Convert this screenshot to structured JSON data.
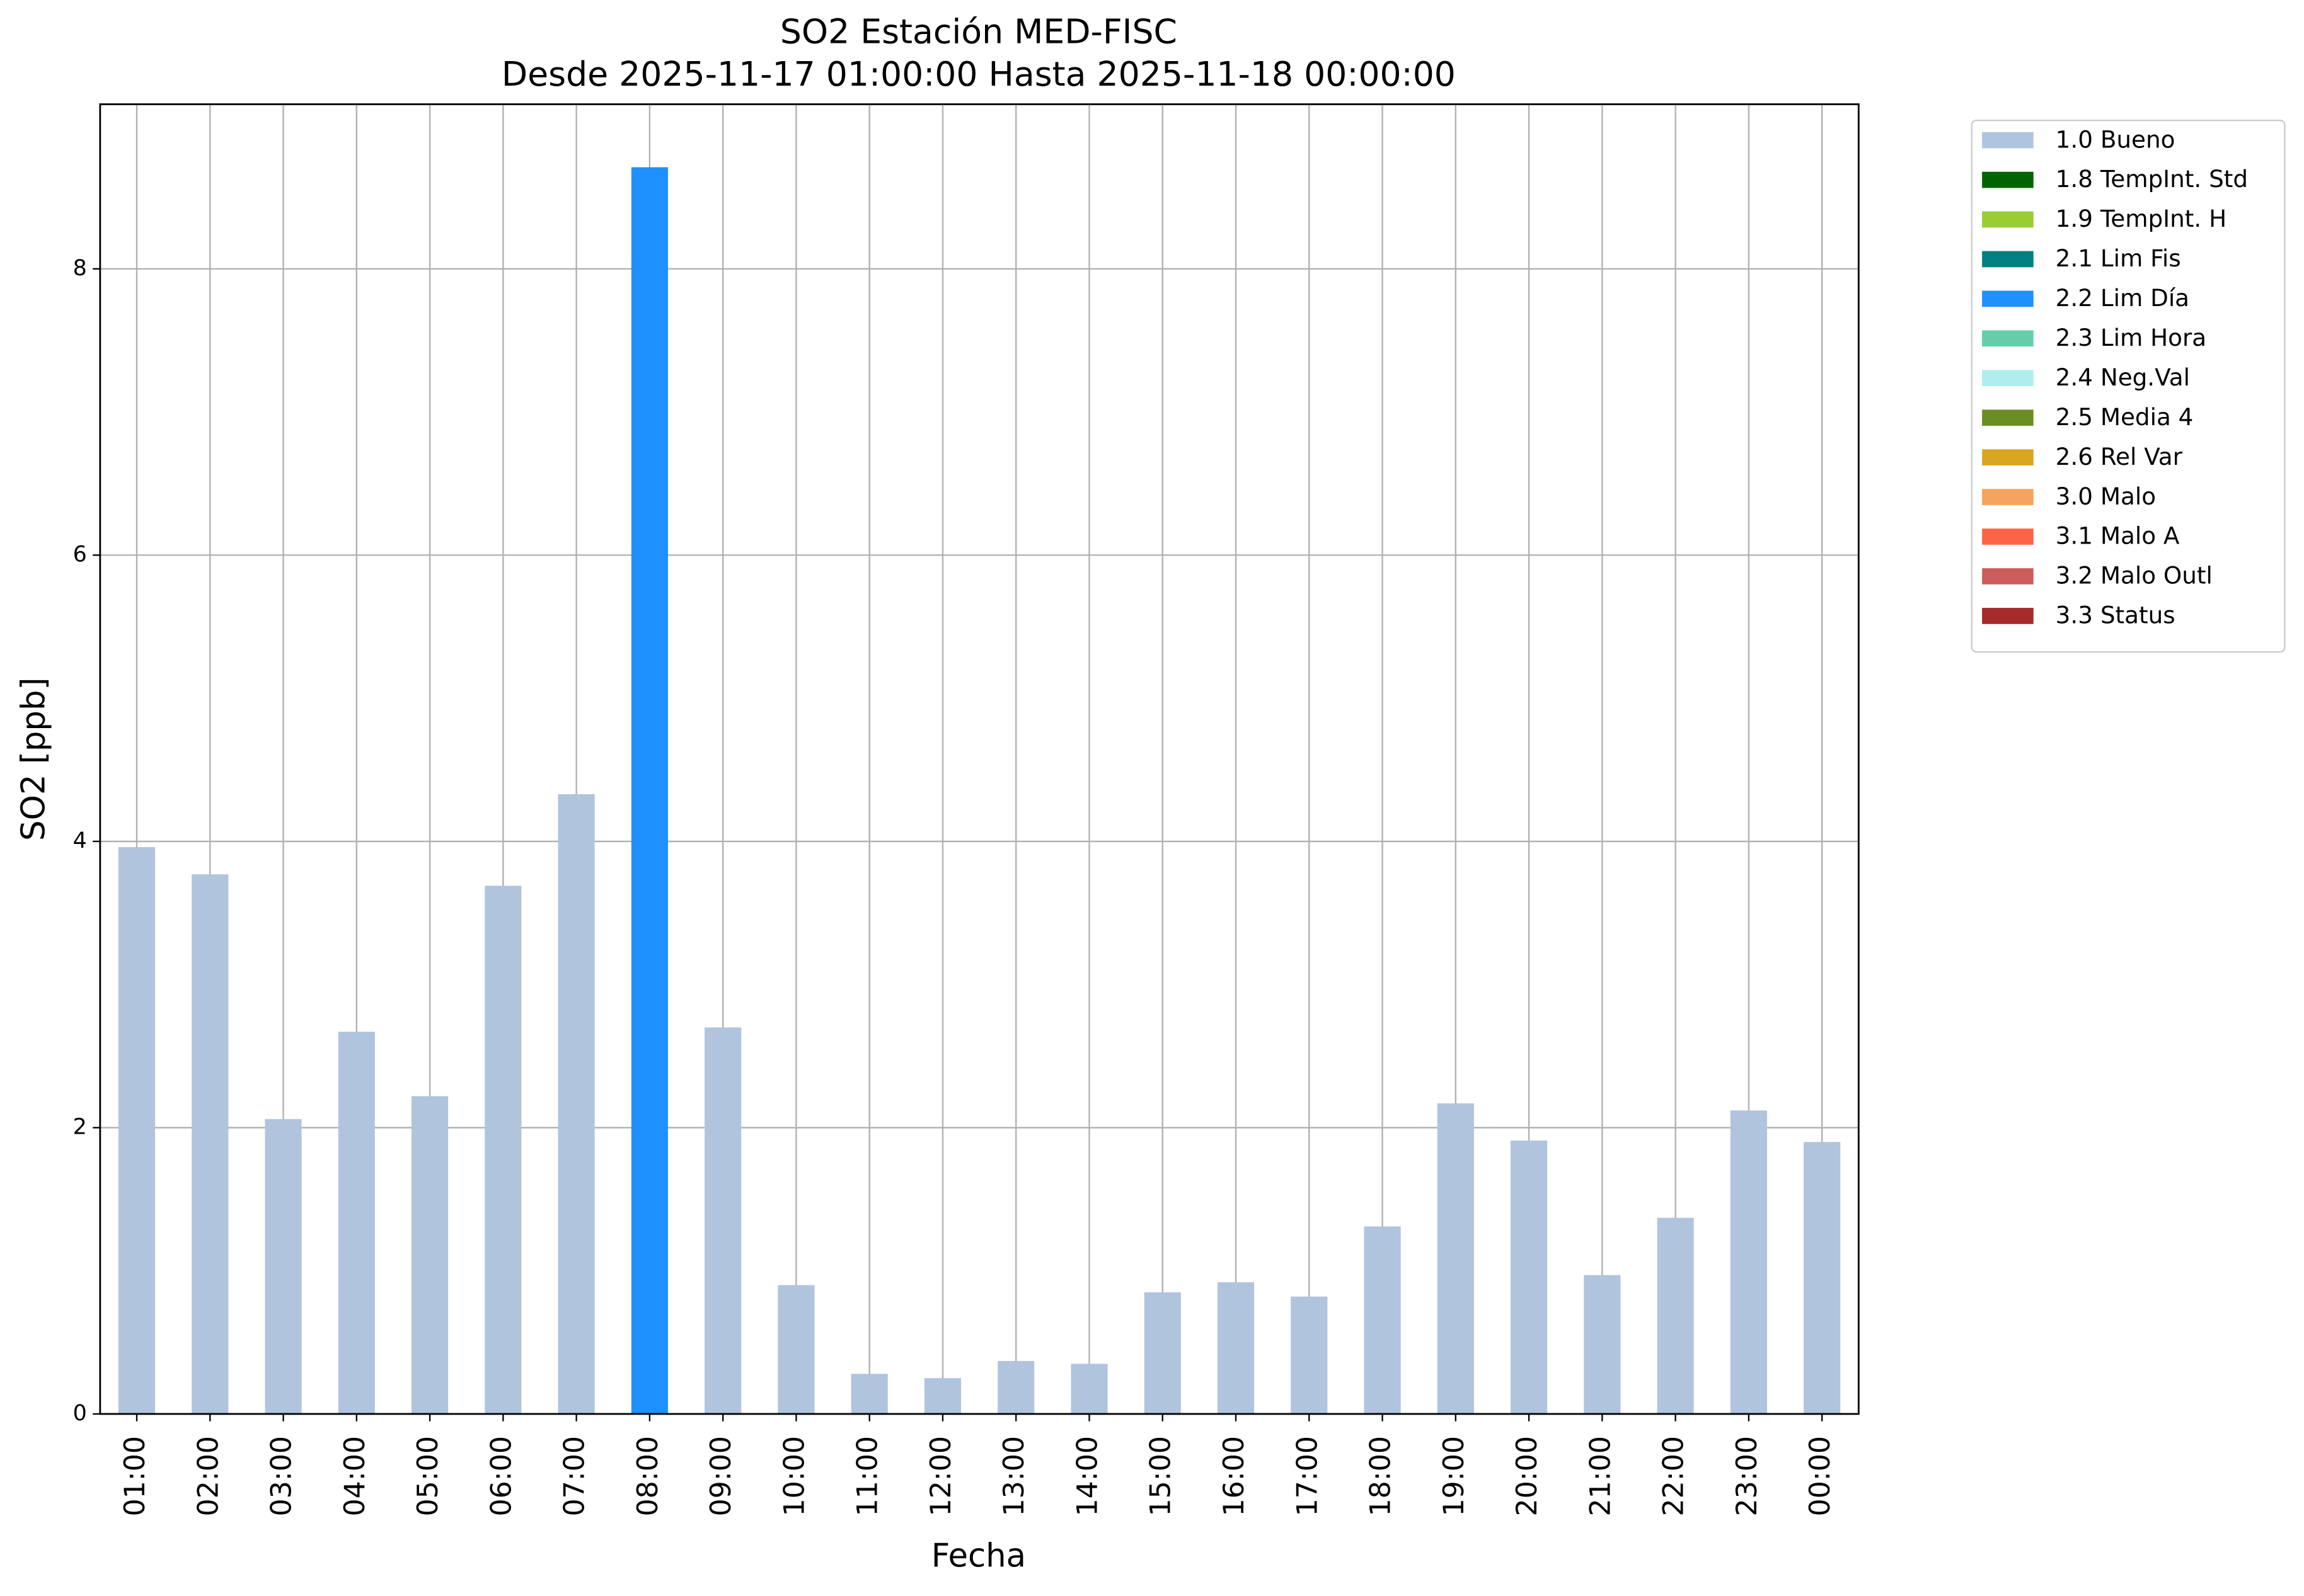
{
  "chart_data": {
    "type": "stacked_bar",
    "title": "SO2 Estación MED-FISC",
    "subtitle": "Desde 2025-11-17 01:00:00 Hasta 2025-11-18 00:00:00",
    "x_label": "Fecha",
    "y_label": "SO2 [ppb]",
    "categories": [
      "01:00",
      "02:00",
      "03:00",
      "04:00",
      "05:00",
      "06:00",
      "07:00",
      "08:00",
      "09:00",
      "10:00",
      "11:00",
      "12:00",
      "13:00",
      "14:00",
      "15:00",
      "16:00",
      "17:00",
      "18:00",
      "19:00",
      "20:00",
      "21:00",
      "22:00",
      "23:00",
      "00:00"
    ],
    "series": [
      {
        "name": "1.0 Bueno",
        "color": "#b0c4de",
        "values": [
          3.96,
          3.77,
          2.06,
          2.67,
          2.22,
          3.69,
          4.33,
          null,
          2.7,
          0.9,
          0.28,
          0.25,
          0.37,
          0.35,
          0.85,
          0.92,
          0.82,
          1.31,
          2.17,
          1.91,
          0.97,
          1.37,
          2.12,
          1.9
        ]
      },
      {
        "name": "1.8 TempInt. Std",
        "color": "#006400",
        "values": [
          null,
          null,
          null,
          null,
          null,
          null,
          null,
          null,
          null,
          null,
          null,
          null,
          null,
          null,
          null,
          null,
          null,
          null,
          null,
          null,
          null,
          null,
          null,
          null
        ]
      },
      {
        "name": "1.9 TempInt. H",
        "color": "#9acd32",
        "values": [
          null,
          null,
          null,
          null,
          null,
          null,
          null,
          null,
          null,
          null,
          null,
          null,
          null,
          null,
          null,
          null,
          null,
          null,
          null,
          null,
          null,
          null,
          null,
          null
        ]
      },
      {
        "name": "2.1 Lim Fis",
        "color": "#008080",
        "values": [
          null,
          null,
          null,
          null,
          null,
          null,
          null,
          null,
          null,
          null,
          null,
          null,
          null,
          null,
          null,
          null,
          null,
          null,
          null,
          null,
          null,
          null,
          null,
          null
        ]
      },
      {
        "name": "2.2 Lim Día",
        "color": "#1e90ff",
        "values": [
          null,
          null,
          null,
          null,
          null,
          null,
          null,
          8.71,
          null,
          null,
          null,
          null,
          null,
          null,
          null,
          null,
          null,
          null,
          null,
          null,
          null,
          null,
          null,
          null
        ]
      },
      {
        "name": "2.3 Lim Hora",
        "color": "#66cdaa",
        "values": [
          null,
          null,
          null,
          null,
          null,
          null,
          null,
          null,
          null,
          null,
          null,
          null,
          null,
          null,
          null,
          null,
          null,
          null,
          null,
          null,
          null,
          null,
          null,
          null
        ]
      },
      {
        "name": "2.4 Neg.Val",
        "color": "#afeeee",
        "values": [
          null,
          null,
          null,
          null,
          null,
          null,
          null,
          null,
          null,
          null,
          null,
          null,
          null,
          null,
          null,
          null,
          null,
          null,
          null,
          null,
          null,
          null,
          null,
          null
        ]
      },
      {
        "name": "2.5 Media 4",
        "color": "#6b8e23",
        "values": [
          null,
          null,
          null,
          null,
          null,
          null,
          null,
          null,
          null,
          null,
          null,
          null,
          null,
          null,
          null,
          null,
          null,
          null,
          null,
          null,
          null,
          null,
          null,
          null
        ]
      },
      {
        "name": "2.6 Rel Var",
        "color": "#daa520",
        "values": [
          null,
          null,
          null,
          null,
          null,
          null,
          null,
          null,
          null,
          null,
          null,
          null,
          null,
          null,
          null,
          null,
          null,
          null,
          null,
          null,
          null,
          null,
          null,
          null
        ]
      },
      {
        "name": "3.0 Malo",
        "color": "#f4a460",
        "values": [
          null,
          null,
          null,
          null,
          null,
          null,
          null,
          null,
          null,
          null,
          null,
          null,
          null,
          null,
          null,
          null,
          null,
          null,
          null,
          null,
          null,
          null,
          null,
          null
        ]
      },
      {
        "name": "3.1 Malo A",
        "color": "#ff6347",
        "values": [
          null,
          null,
          null,
          null,
          null,
          null,
          null,
          null,
          null,
          null,
          null,
          null,
          null,
          null,
          null,
          null,
          null,
          null,
          null,
          null,
          null,
          null,
          null,
          null
        ]
      },
      {
        "name": "3.2 Malo Outl",
        "color": "#cd5c5c",
        "values": [
          null,
          null,
          null,
          null,
          null,
          null,
          null,
          null,
          null,
          null,
          null,
          null,
          null,
          null,
          null,
          null,
          null,
          null,
          null,
          null,
          null,
          null,
          null,
          null
        ]
      },
      {
        "name": "3.3 Status",
        "color": "#a52a2a",
        "values": [
          null,
          null,
          null,
          null,
          null,
          null,
          null,
          null,
          null,
          null,
          null,
          null,
          null,
          null,
          null,
          null,
          null,
          null,
          null,
          null,
          null,
          null,
          null,
          null
        ]
      }
    ],
    "ylim": [
      0,
      9.15
    ],
    "yticks": [
      0,
      2,
      4,
      6,
      8
    ],
    "grid": true,
    "legend": "outside-upper-right"
  }
}
